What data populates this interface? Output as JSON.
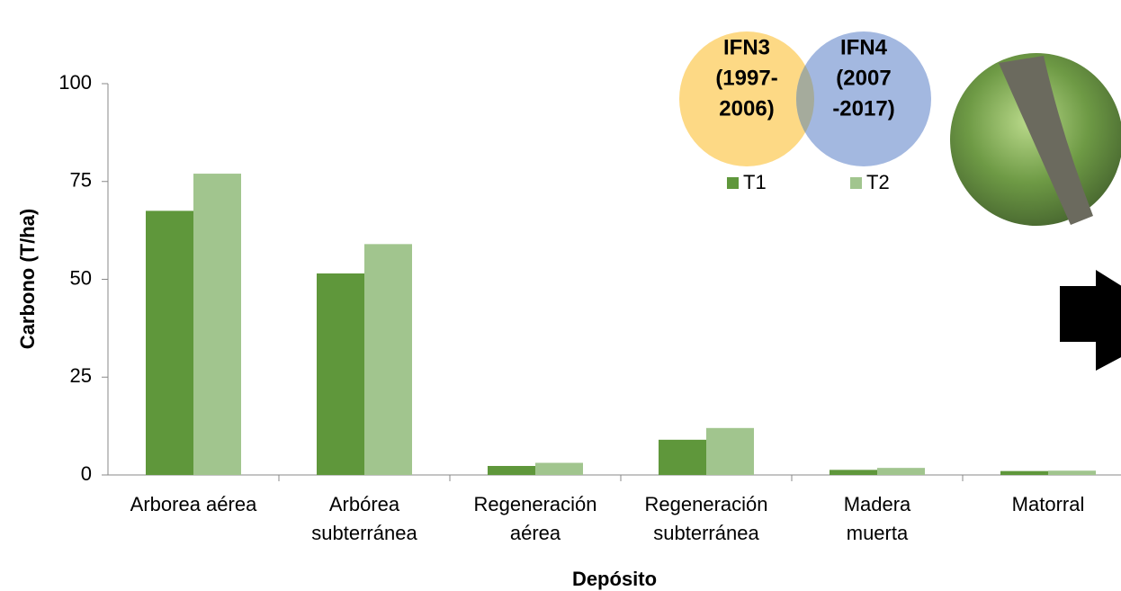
{
  "chart_data": {
    "type": "bar",
    "categories": [
      [
        "Arborea aérea"
      ],
      [
        "Arbórea",
        "subterránea"
      ],
      [
        "Regeneración",
        "aérea"
      ],
      [
        "Regeneración",
        "subterránea"
      ],
      [
        "Madera",
        "muerta"
      ],
      [
        "Matorral"
      ]
    ],
    "series": [
      {
        "name": "T1",
        "color": "#5f973b",
        "values": [
          67.5,
          51.5,
          2.3,
          9,
          1.3,
          1.0
        ]
      },
      {
        "name": "T2",
        "color": "#a1c58e",
        "values": [
          77,
          59,
          3.1,
          12,
          1.8,
          1.1
        ]
      }
    ],
    "ylim": [
      0,
      100
    ],
    "yticks": [
      0,
      25,
      50,
      75,
      100
    ],
    "y_label": "Carbono  (T/ha)",
    "x_label": "Depósito",
    "annotations": [
      [
        "IFN3",
        "(1997-",
        "2006)"
      ],
      [
        "IFN4",
        "(2007",
        "-2017)"
      ]
    ]
  }
}
